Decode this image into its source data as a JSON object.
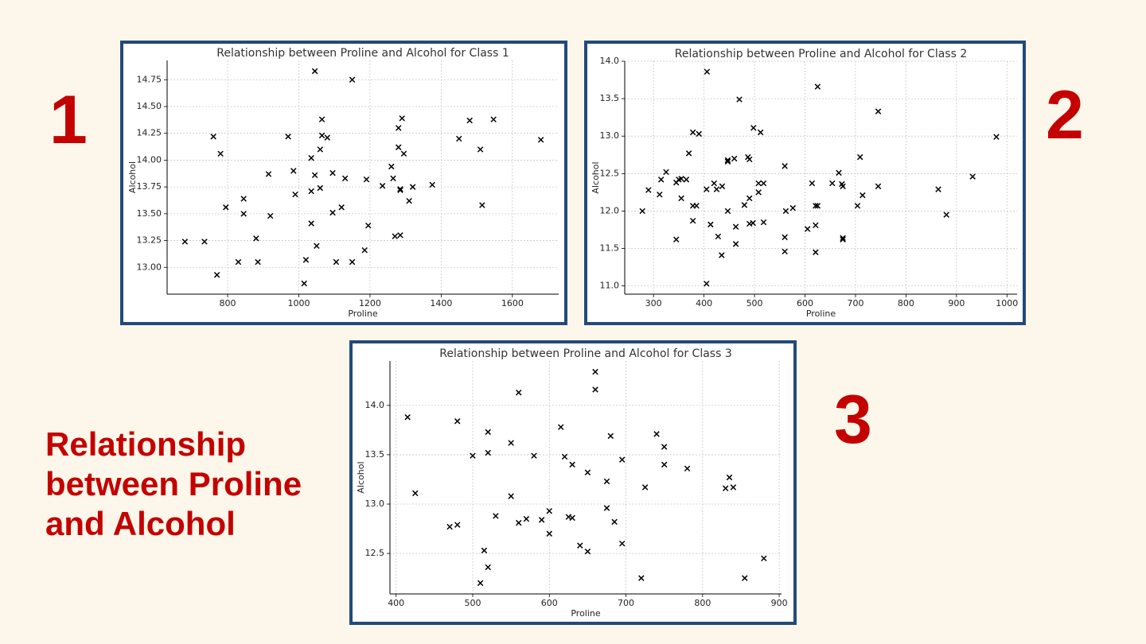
{
  "slide": {
    "title": "Relationship between Proline and Alcohol",
    "labels": [
      "1",
      "2",
      "3"
    ]
  },
  "chart_data": [
    {
      "type": "scatter",
      "title": "Relationship between Proline and Alcohol for Class 1",
      "x_label": "Proline",
      "y_label": "Alcohol",
      "color": "#000000",
      "marker": "x",
      "grid": true,
      "x": [
        680,
        735,
        760,
        780,
        770,
        795,
        845,
        845,
        830,
        880,
        885,
        915,
        920,
        970,
        985,
        990,
        1015,
        1020,
        1035,
        1035,
        1035,
        1045,
        1045,
        1050,
        1060,
        1060,
        1065,
        1065,
        1080,
        1095,
        1095,
        1105,
        1120,
        1130,
        1150,
        1150,
        1185,
        1190,
        1195,
        1235,
        1260,
        1265,
        1270,
        1280,
        1280,
        1285,
        1285,
        1285,
        1290,
        1295,
        1310,
        1320,
        1375,
        1450,
        1480,
        1510,
        1515,
        1547,
        1680
      ],
      "values": [
        13.24,
        13.24,
        14.22,
        14.06,
        12.93,
        13.56,
        13.64,
        13.5,
        13.05,
        13.27,
        13.05,
        13.87,
        13.48,
        14.22,
        13.9,
        13.68,
        12.85,
        13.07,
        14.02,
        13.71,
        13.41,
        13.86,
        14.83,
        13.2,
        13.74,
        14.1,
        14.38,
        14.23,
        14.21,
        13.88,
        13.51,
        13.05,
        13.56,
        13.83,
        14.75,
        13.05,
        13.16,
        13.82,
        13.39,
        13.76,
        13.94,
        13.83,
        13.29,
        14.12,
        14.3,
        13.73,
        13.72,
        13.3,
        14.39,
        14.06,
        13.62,
        13.75,
        13.77,
        14.2,
        14.37,
        14.1,
        13.58,
        14.38,
        14.19
      ],
      "xlim": [
        630,
        1730
      ],
      "xticks": [
        800,
        1000,
        1200,
        1400,
        1600
      ],
      "ylim": [
        12.75,
        14.93
      ],
      "yticks": [
        {
          "value": 13,
          "label": "13.00"
        },
        13.25,
        {
          "value": 13.5,
          "label": "13.50"
        },
        13.75,
        {
          "value": 14,
          "label": "14.00"
        },
        14.25,
        {
          "value": 14.5,
          "label": "14.50"
        },
        14.75
      ]
    },
    {
      "type": "scatter",
      "title": "Relationship between Proline and Alcohol for Class 2",
      "x_label": "Proline",
      "y_label": "Alcohol",
      "color": "#000000",
      "marker": "x",
      "grid": true,
      "x": [
        278,
        290,
        312,
        315,
        325,
        345,
        345,
        350,
        355,
        355,
        365,
        370,
        378,
        378,
        378,
        385,
        390,
        405,
        405,
        406,
        413,
        420,
        425,
        428,
        435,
        436,
        447,
        447,
        447,
        460,
        463,
        463,
        470,
        480,
        487,
        490,
        490,
        490,
        497,
        498,
        508,
        508,
        512,
        518,
        518,
        560,
        560,
        562,
        560,
        576,
        605,
        614,
        621,
        621,
        621,
        625,
        625,
        654,
        667,
        673,
        675,
        675,
        675,
        704,
        709,
        714,
        745,
        745,
        864,
        880,
        932,
        979
      ],
      "values": [
        12.0,
        12.28,
        12.22,
        12.42,
        12.52,
        11.62,
        12.38,
        12.42,
        12.43,
        12.17,
        12.42,
        12.77,
        13.05,
        11.87,
        12.07,
        12.07,
        13.03,
        12.29,
        11.03,
        13.86,
        11.82,
        12.37,
        12.29,
        11.66,
        11.41,
        12.33,
        12.0,
        12.66,
        12.68,
        12.7,
        11.79,
        11.56,
        13.49,
        12.08,
        12.72,
        12.69,
        12.17,
        11.83,
        11.84,
        13.11,
        12.25,
        12.37,
        13.05,
        12.37,
        11.85,
        12.6,
        11.65,
        12.0,
        11.46,
        12.04,
        11.76,
        12.37,
        12.07,
        11.81,
        11.45,
        12.07,
        13.66,
        12.37,
        12.51,
        12.36,
        12.33,
        11.64,
        11.62,
        12.07,
        12.72,
        12.21,
        12.33,
        13.33,
        12.29,
        11.95,
        12.46,
        12.99
      ],
      "xlim": [
        243,
        1020
      ],
      "xticks": [
        300,
        400,
        500,
        600,
        700,
        800,
        900,
        1000
      ],
      "ylim": [
        10.89,
        14.0
      ],
      "yticks": [
        {
          "value": 11,
          "label": "11.0"
        },
        11.5,
        {
          "value": 12,
          "label": "12.0"
        },
        12.5,
        {
          "value": 13,
          "label": "13.0"
        },
        13.5,
        {
          "value": 14,
          "label": "14.0"
        }
      ]
    },
    {
      "type": "scatter",
      "title": "Relationship between Proline and Alcohol for Class 3",
      "x_label": "Proline",
      "y_label": "Alcohol",
      "color": "#000000",
      "marker": "x",
      "grid": true,
      "x": [
        415,
        425,
        470,
        480,
        480,
        500,
        510,
        515,
        520,
        520,
        520,
        530,
        550,
        550,
        560,
        560,
        570,
        580,
        590,
        600,
        600,
        615,
        620,
        625,
        630,
        630,
        640,
        650,
        650,
        660,
        660,
        675,
        675,
        680,
        685,
        695,
        695,
        720,
        725,
        740,
        750,
        750,
        780,
        830,
        835,
        840,
        855,
        880
      ],
      "values": [
        13.88,
        13.11,
        12.77,
        12.79,
        13.84,
        13.49,
        12.2,
        12.53,
        13.73,
        13.52,
        12.36,
        12.88,
        13.62,
        13.08,
        12.81,
        14.13,
        12.85,
        13.49,
        12.84,
        12.7,
        12.93,
        13.78,
        13.48,
        12.87,
        12.86,
        13.4,
        12.58,
        13.32,
        12.52,
        14.34,
        14.16,
        13.23,
        12.96,
        13.69,
        12.82,
        13.45,
        12.6,
        12.25,
        13.17,
        13.71,
        13.58,
        13.4,
        13.36,
        13.16,
        13.27,
        13.17,
        12.25,
        12.45
      ],
      "xlim": [
        392,
        903
      ],
      "xticks": [
        400,
        500,
        600,
        700,
        800,
        900
      ],
      "ylim": [
        12.09,
        14.45
      ],
      "yticks": [
        12.5,
        {
          "value": 13,
          "label": "13.0"
        },
        13.5,
        {
          "value": 14,
          "label": "14.0"
        }
      ]
    }
  ]
}
